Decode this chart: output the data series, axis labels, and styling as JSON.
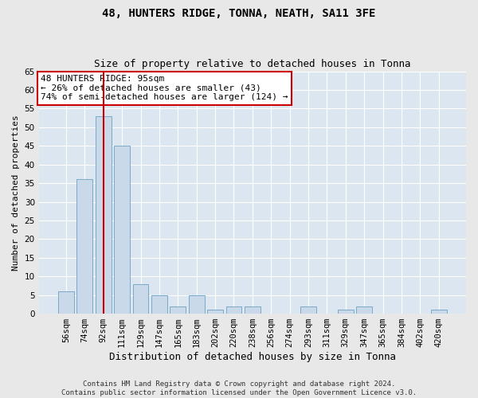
{
  "title": "48, HUNTERS RIDGE, TONNA, NEATH, SA11 3FE",
  "subtitle": "Size of property relative to detached houses in Tonna",
  "xlabel": "Distribution of detached houses by size in Tonna",
  "ylabel": "Number of detached properties",
  "bin_labels": [
    "56sqm",
    "74sqm",
    "92sqm",
    "111sqm",
    "129sqm",
    "147sqm",
    "165sqm",
    "183sqm",
    "202sqm",
    "220sqm",
    "238sqm",
    "256sqm",
    "274sqm",
    "293sqm",
    "311sqm",
    "329sqm",
    "347sqm",
    "365sqm",
    "384sqm",
    "402sqm",
    "420sqm"
  ],
  "bar_values": [
    6,
    36,
    53,
    45,
    8,
    5,
    2,
    5,
    1,
    2,
    2,
    0,
    0,
    2,
    0,
    1,
    2,
    0,
    0,
    0,
    1
  ],
  "bar_color": "#c9d9ea",
  "bar_edgecolor": "#7aaac8",
  "property_bin_index": 2,
  "vline_color": "#cc0000",
  "annotation_text": "48 HUNTERS RIDGE: 95sqm\n← 26% of detached houses are smaller (43)\n74% of semi-detached houses are larger (124) →",
  "annotation_box_edgecolor": "#cc0000",
  "annotation_box_facecolor": "#ffffff",
  "ylim": [
    0,
    65
  ],
  "yticks": [
    0,
    5,
    10,
    15,
    20,
    25,
    30,
    35,
    40,
    45,
    50,
    55,
    60,
    65
  ],
  "background_color": "#dce6f0",
  "grid_color": "#ffffff",
  "footer_text": "Contains HM Land Registry data © Crown copyright and database right 2024.\nContains public sector information licensed under the Open Government Licence v3.0.",
  "title_fontsize": 10,
  "subtitle_fontsize": 9,
  "xlabel_fontsize": 9,
  "ylabel_fontsize": 8,
  "tick_fontsize": 7.5,
  "annotation_fontsize": 8,
  "footer_fontsize": 6.5
}
